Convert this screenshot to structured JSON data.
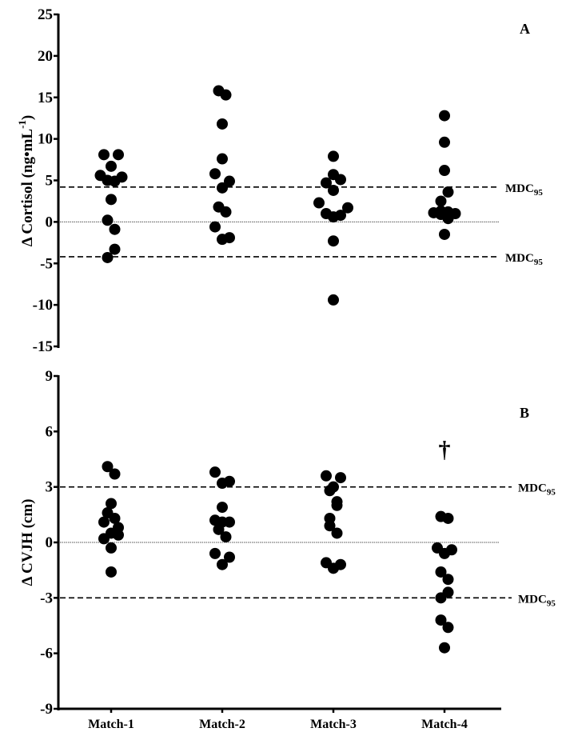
{
  "chart_data": [
    {
      "type": "scatter",
      "panel_label": "A",
      "title": "",
      "xlabel": "",
      "ylabel": "Δ Cortisol (ng•mL⁻¹)",
      "ylabel_parts": {
        "prefix": "Δ Cortisol (ng•mL",
        "sup": "-1",
        "suffix": ")"
      },
      "categories": [
        "Match-1",
        "Match-2",
        "Match-3",
        "Match-4"
      ],
      "ylim": [
        -15,
        25
      ],
      "yticks": [
        25,
        20,
        15,
        10,
        5,
        0,
        -5,
        -10,
        -15
      ],
      "grid": false,
      "reference_lines": [
        {
          "value": 4.2,
          "style": "dashed",
          "label": "MDC",
          "label_sub": "95"
        },
        {
          "value": -4.2,
          "style": "dashed",
          "label": "MDC",
          "label_sub": "95"
        },
        {
          "value": 0,
          "style": "dotted",
          "label": ""
        }
      ],
      "series": [
        {
          "name": "Match-1",
          "points": [
            {
              "value": 8.1,
              "jitter": -1
            },
            {
              "value": 8.1,
              "jitter": 1
            },
            {
              "value": 6.7,
              "jitter": 0
            },
            {
              "value": 5.6,
              "jitter": -1.5
            },
            {
              "value": 5.0,
              "jitter": -0.5
            },
            {
              "value": 4.9,
              "jitter": 0.5
            },
            {
              "value": 5.4,
              "jitter": 1.5
            },
            {
              "value": 2.7,
              "jitter": 0
            },
            {
              "value": 0.2,
              "jitter": -0.5
            },
            {
              "value": -0.9,
              "jitter": 0.5
            },
            {
              "value": -3.3,
              "jitter": 0.5
            },
            {
              "value": -4.3,
              "jitter": -0.5
            }
          ]
        },
        {
          "name": "Match-2",
          "points": [
            {
              "value": 15.8,
              "jitter": -0.5
            },
            {
              "value": 15.3,
              "jitter": 0.5
            },
            {
              "value": 11.8,
              "jitter": 0
            },
            {
              "value": 7.6,
              "jitter": 0
            },
            {
              "value": 5.8,
              "jitter": -1
            },
            {
              "value": 4.9,
              "jitter": 1
            },
            {
              "value": 4.1,
              "jitter": 0
            },
            {
              "value": 1.8,
              "jitter": -0.5
            },
            {
              "value": 1.2,
              "jitter": 0.5
            },
            {
              "value": -0.6,
              "jitter": -1
            },
            {
              "value": -2.1,
              "jitter": 0
            },
            {
              "value": -1.9,
              "jitter": 1
            }
          ]
        },
        {
          "name": "Match-3",
          "points": [
            {
              "value": 7.9,
              "jitter": 0
            },
            {
              "value": 5.7,
              "jitter": 0
            },
            {
              "value": 4.7,
              "jitter": -1
            },
            {
              "value": 5.1,
              "jitter": 1
            },
            {
              "value": 3.8,
              "jitter": 0
            },
            {
              "value": 2.3,
              "jitter": -2
            },
            {
              "value": 1.0,
              "jitter": -1
            },
            {
              "value": 0.6,
              "jitter": 0
            },
            {
              "value": 0.8,
              "jitter": 1
            },
            {
              "value": 1.7,
              "jitter": 2
            },
            {
              "value": -2.3,
              "jitter": 0
            },
            {
              "value": -9.4,
              "jitter": 0
            }
          ]
        },
        {
          "name": "Match-4",
          "points": [
            {
              "value": 12.8,
              "jitter": 0
            },
            {
              "value": 9.6,
              "jitter": 0
            },
            {
              "value": 6.2,
              "jitter": 0
            },
            {
              "value": 3.6,
              "jitter": 0.5
            },
            {
              "value": 2.5,
              "jitter": -0.5
            },
            {
              "value": 1.1,
              "jitter": -1.5
            },
            {
              "value": 1.3,
              "jitter": -0.5
            },
            {
              "value": 0.9,
              "jitter": -0.5
            },
            {
              "value": 1.2,
              "jitter": 0.5
            },
            {
              "value": 0.4,
              "jitter": 0.5
            },
            {
              "value": 1.0,
              "jitter": 1.5
            },
            {
              "value": -1.5,
              "jitter": 0
            }
          ]
        }
      ],
      "annotations": []
    },
    {
      "type": "scatter",
      "panel_label": "B",
      "title": "",
      "xlabel": "",
      "ylabel": "Δ CVJH (cm)",
      "categories": [
        "Match-1",
        "Match-2",
        "Match-3",
        "Match-4"
      ],
      "ylim": [
        -9,
        9
      ],
      "yticks": [
        9,
        6,
        3,
        0,
        -3,
        -6,
        -9
      ],
      "grid": false,
      "reference_lines": [
        {
          "value": 3,
          "style": "dashed",
          "label": "MDC",
          "label_sub": "95"
        },
        {
          "value": -3,
          "style": "dashed",
          "label": "MDC",
          "label_sub": "95"
        },
        {
          "value": 0,
          "style": "dotted",
          "label": ""
        }
      ],
      "series": [
        {
          "name": "Match-1",
          "points": [
            {
              "value": 4.1,
              "jitter": -0.5
            },
            {
              "value": 3.7,
              "jitter": 0.5
            },
            {
              "value": 2.1,
              "jitter": 0
            },
            {
              "value": 1.6,
              "jitter": -0.5
            },
            {
              "value": 1.1,
              "jitter": -1
            },
            {
              "value": 1.3,
              "jitter": 0.5
            },
            {
              "value": 0.8,
              "jitter": 1
            },
            {
              "value": 0.4,
              "jitter": 1
            },
            {
              "value": 0.5,
              "jitter": 0
            },
            {
              "value": 0.2,
              "jitter": -1
            },
            {
              "value": -0.3,
              "jitter": 0
            },
            {
              "value": -1.6,
              "jitter": 0
            }
          ]
        },
        {
          "name": "Match-2",
          "points": [
            {
              "value": 3.8,
              "jitter": -1
            },
            {
              "value": 3.2,
              "jitter": 0
            },
            {
              "value": 3.3,
              "jitter": 1
            },
            {
              "value": 1.9,
              "jitter": 0
            },
            {
              "value": 1.2,
              "jitter": -1
            },
            {
              "value": 1.1,
              "jitter": 0
            },
            {
              "value": 1.1,
              "jitter": 1
            },
            {
              "value": 0.7,
              "jitter": -0.5
            },
            {
              "value": 0.3,
              "jitter": 0.5
            },
            {
              "value": -0.6,
              "jitter": -1
            },
            {
              "value": -0.8,
              "jitter": 1
            },
            {
              "value": -1.2,
              "jitter": 0
            }
          ]
        },
        {
          "name": "Match-3",
          "points": [
            {
              "value": 3.6,
              "jitter": -1
            },
            {
              "value": 3.5,
              "jitter": 1
            },
            {
              "value": 3.0,
              "jitter": 0
            },
            {
              "value": 2.8,
              "jitter": -0.5
            },
            {
              "value": 2.2,
              "jitter": 0.5
            },
            {
              "value": 2.0,
              "jitter": 0.5
            },
            {
              "value": 1.3,
              "jitter": -0.5
            },
            {
              "value": 0.9,
              "jitter": -0.5
            },
            {
              "value": 0.5,
              "jitter": 0.5
            },
            {
              "value": -1.1,
              "jitter": -1
            },
            {
              "value": -1.4,
              "jitter": 0
            },
            {
              "value": -1.2,
              "jitter": 1
            }
          ]
        },
        {
          "name": "Match-4",
          "points": [
            {
              "value": 1.4,
              "jitter": -0.5
            },
            {
              "value": 1.3,
              "jitter": 0.5
            },
            {
              "value": -0.3,
              "jitter": -1
            },
            {
              "value": -0.6,
              "jitter": 0
            },
            {
              "value": -0.4,
              "jitter": 1
            },
            {
              "value": -1.6,
              "jitter": -0.5
            },
            {
              "value": -2.0,
              "jitter": 0.5
            },
            {
              "value": -2.7,
              "jitter": 0.5
            },
            {
              "value": -3.0,
              "jitter": -0.5
            },
            {
              "value": -4.2,
              "jitter": -0.5
            },
            {
              "value": -4.6,
              "jitter": 0.5
            },
            {
              "value": -5.7,
              "jitter": 0
            }
          ]
        }
      ],
      "annotations": [
        {
          "text": "†",
          "category": "Match-4",
          "value": 4.6,
          "meaning": "significance-dagger"
        }
      ]
    }
  ]
}
